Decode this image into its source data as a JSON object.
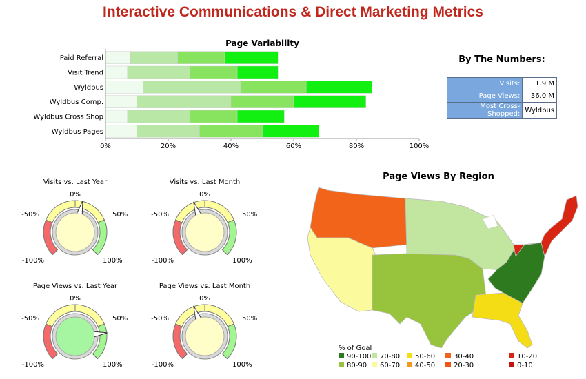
{
  "header": {
    "title": "Interactive Communications & Direct Marketing Metrics"
  },
  "by_the_numbers": {
    "title": "By The Numbers:",
    "rows": [
      {
        "label": "Visits:",
        "value": "1.9 M"
      },
      {
        "label": "Page Views:",
        "value": "36.0 M"
      },
      {
        "label": "Most Cross-Shopped:",
        "value": "Wyldbus"
      }
    ]
  },
  "chart_data": [
    {
      "type": "bar",
      "orientation": "horizontal-stacked",
      "title": "Page Variability",
      "categories": [
        "Paid Referral",
        "Visit Trend",
        "Wyldbus",
        "Wyldbus Comp.",
        "Wyldbus Cross Shop",
        "Wyldbus Pages"
      ],
      "segment_colors": [
        "#f0fbf0",
        "#b9e7a6",
        "#88e35e",
        "#11f011"
      ],
      "segments": [
        [
          8,
          23,
          38,
          55
        ],
        [
          7,
          27,
          42,
          55
        ],
        [
          12,
          43,
          64,
          85
        ],
        [
          10,
          40,
          60,
          83
        ],
        [
          7,
          27,
          42,
          57
        ],
        [
          10,
          30,
          50,
          68
        ]
      ],
      "xlim": [
        0,
        100
      ],
      "xticks": [
        "0%",
        "20%",
        "40%",
        "60%",
        "80%",
        "100%"
      ],
      "grid": false
    },
    {
      "type": "gauge",
      "gauges": [
        {
          "title": "Visits vs. Last Year",
          "value": 0.1,
          "face": "#fffdc8"
        },
        {
          "title": "Visits vs. Last Month",
          "value": -0.15,
          "face": "#fffdc8"
        },
        {
          "title": "Page Views vs. Last Year",
          "value": 0.62,
          "face": "#a6f5a0"
        },
        {
          "title": "Page Views vs. Last Month",
          "value": -0.15,
          "face": "#fffdc8"
        }
      ],
      "scale_labels": [
        "0%",
        "-50%",
        "50%",
        "-100%",
        "100%"
      ],
      "band_colors": {
        "low": "#f46a6a",
        "mid": "#ffff9e",
        "high": "#a2f590"
      }
    },
    {
      "type": "map",
      "title": "Page Views By Region",
      "legend_title": "% of Goal",
      "legend": [
        {
          "label": "90-100",
          "color": "#2d7a1f"
        },
        {
          "label": "80-90",
          "color": "#97c43c"
        },
        {
          "label": "70-80",
          "color": "#c2e6a0"
        },
        {
          "label": "60-70",
          "color": "#fbfb9e"
        },
        {
          "label": "50-60",
          "color": "#f5dd16"
        },
        {
          "label": "40-50",
          "color": "#f39a1e"
        },
        {
          "label": "30-40",
          "color": "#f26419"
        },
        {
          "label": "20-30",
          "color": "#f1551a"
        },
        {
          "label": "10-20",
          "color": "#d92612"
        },
        {
          "label": "0-10",
          "color": "#c2140d"
        }
      ],
      "regions": [
        {
          "name": "Northwest",
          "bin": "30-40"
        },
        {
          "name": "Southwest",
          "bin": "60-70"
        },
        {
          "name": "Plains",
          "bin": "80-90"
        },
        {
          "name": "North Central",
          "bin": "70-80"
        },
        {
          "name": "Southeast Atlantic",
          "bin": "90-100"
        },
        {
          "name": "Southeast",
          "bin": "50-60"
        },
        {
          "name": "Northeast",
          "bin": "10-20"
        }
      ]
    }
  ]
}
